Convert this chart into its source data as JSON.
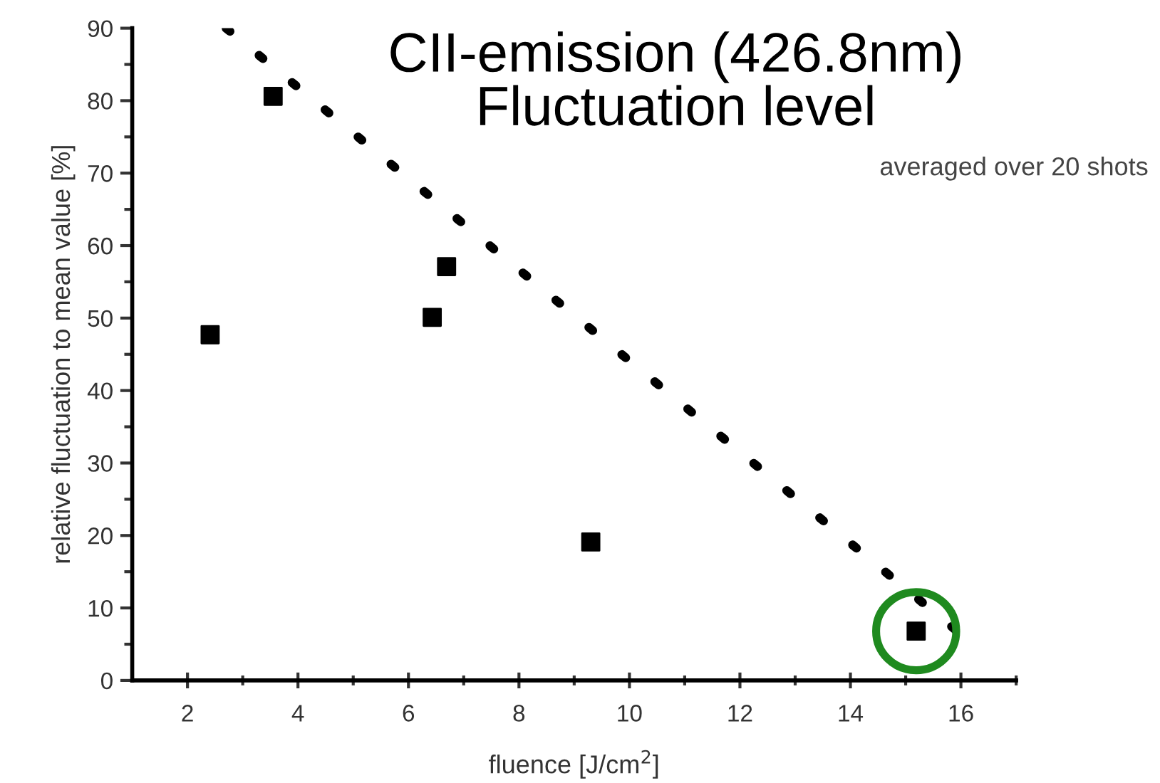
{
  "chart_data": {
    "type": "scatter",
    "title": "CII-emission (426.8nm)\nFluctuation level",
    "xlabel": "fluence [J/cm$^{2}$]",
    "ylabel": "relative fluctuation to mean value [%]",
    "annotations": [
      "averaged over 20 shots"
    ],
    "series": [
      {
        "color": "#000000",
        "marker": "square",
        "x": [
          2.41,
          3.55,
          6.43,
          6.69,
          9.3,
          15.19
        ],
        "values": [
          47.7,
          80.6,
          50.1,
          57.1,
          19.1,
          6.8
        ]
      },
      {
        "type": "line",
        "color": "#000000",
        "marker": "none",
        "line_style": "dotted",
        "x": [
          2.7,
          15.9
        ],
        "values": [
          90,
          7
        ]
      }
    ],
    "xlim": [
      1,
      17
    ],
    "ylim": [
      0,
      90
    ],
    "xticks": [
      2,
      {
        "value": 3,
        "label": null
      },
      4,
      {
        "value": 5,
        "label": null
      },
      6,
      {
        "value": 7,
        "label": null
      },
      8,
      {
        "value": 9,
        "label": null
      },
      10,
      {
        "value": 11,
        "label": null
      },
      12,
      {
        "value": 13,
        "label": null
      },
      14,
      {
        "value": 15,
        "label": null
      },
      16,
      {
        "value": 17,
        "label": null
      }
    ],
    "yticks": [
      0,
      {
        "value": 5,
        "label": null
      },
      10,
      {
        "value": 15,
        "label": null
      },
      20,
      {
        "value": 25,
        "label": null
      },
      30,
      {
        "value": 35,
        "label": null
      },
      40,
      {
        "value": 45,
        "label": null
      },
      50,
      {
        "value": 55,
        "label": null
      },
      60,
      {
        "value": 65,
        "label": null
      },
      70,
      {
        "value": 75,
        "label": null
      },
      80,
      {
        "value": 85,
        "label": null
      },
      90
    ],
    "grid": false
  }
}
